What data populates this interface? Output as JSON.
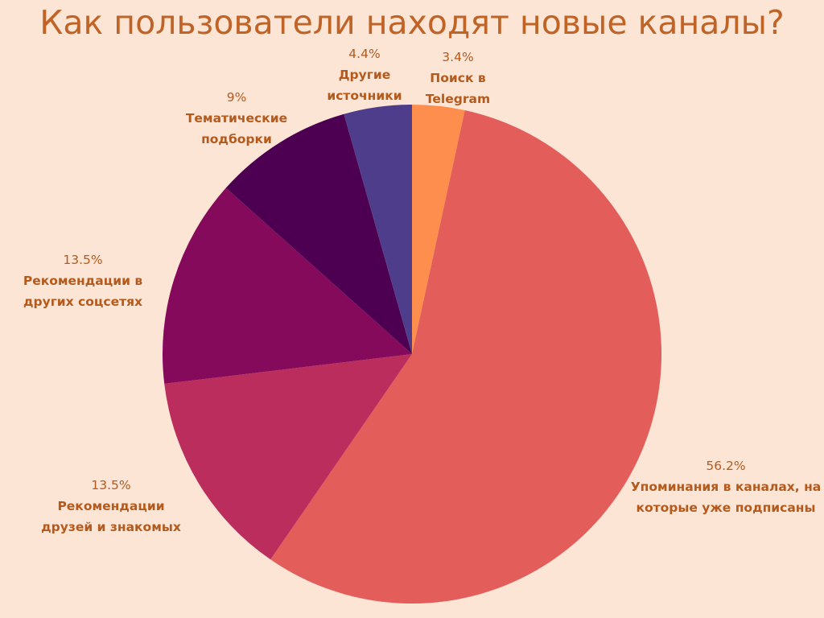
{
  "chart_data": {
    "type": "pie",
    "title": "Как пользователи находят новые каналы?",
    "slices": [
      {
        "label": "Поиск в\nTelegram",
        "value": 3.4,
        "display": "3.4%",
        "color": "#fd8e4e"
      },
      {
        "label": "Упоминания в каналах, на\nкоторые уже подписаны",
        "value": 56.2,
        "display": "56.2%",
        "color": "#e35d5a"
      },
      {
        "label": "Рекомендации\nдрузей и знакомых",
        "value": 13.5,
        "display": "13.5%",
        "color": "#bb2d5c"
      },
      {
        "label": "Рекомендации в\nдругих соцсетях",
        "value": 13.5,
        "display": "13.5%",
        "color": "#860a5b"
      },
      {
        "label": "Тематические\nподборки",
        "value": 9,
        "display": "9%",
        "color": "#4d0052"
      },
      {
        "label": "Другие\nисточники",
        "value": 4.4,
        "display": "4.4%",
        "color": "#4d3d8b"
      }
    ],
    "start": "top",
    "direction": "clockwise",
    "legend": "none"
  }
}
